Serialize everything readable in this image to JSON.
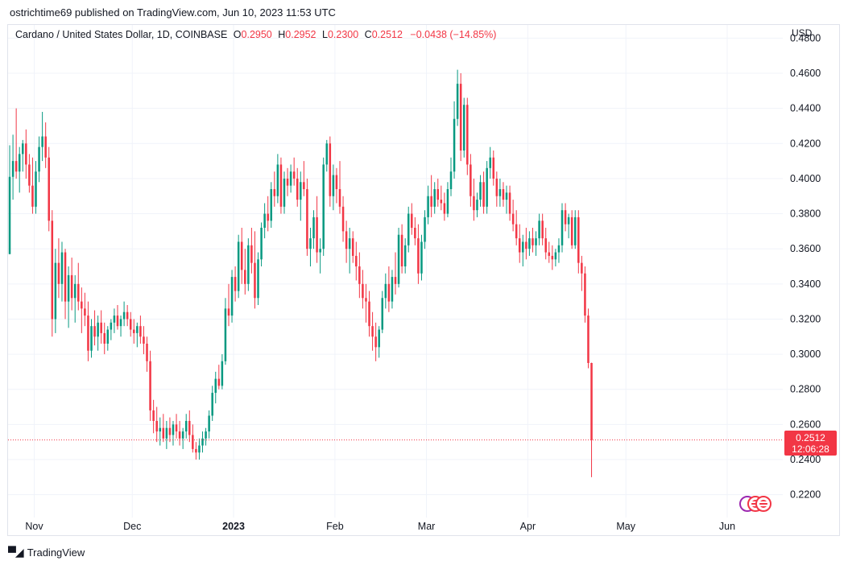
{
  "publish_line": "ostrichtime69 published on TradingView.com, Jun 10, 2023 11:53 UTC",
  "legend": {
    "symbol": "Cardano / United States Dollar, 1D, COINBASE",
    "o_label": "O",
    "o_value": "0.2950",
    "h_label": "H",
    "h_value": "0.2952",
    "l_label": "L",
    "l_value": "0.2300",
    "c_label": "C",
    "c_value": "0.2512",
    "change": "−0.0438 (−14.85%)"
  },
  "currency": "USD",
  "price_tag": {
    "price": "0.2512",
    "countdown": "12:06:28"
  },
  "branding": "TradingView",
  "colors": {
    "up": "#089981",
    "down": "#f23645",
    "grid": "#f0f3fa",
    "axis_text": "#131722"
  },
  "chart_data": {
    "type": "candlestick",
    "title": "Cardano / United States Dollar, 1D, COINBASE",
    "xlabel": "",
    "ylabel": "USD",
    "ylim": [
      0.207,
      0.4875
    ],
    "x_range": [
      "2022-10-24",
      "2023-06-18"
    ],
    "grid": true,
    "y_ticks": [
      "0.2200",
      "0.2400",
      "0.2600",
      "0.2800",
      "0.3000",
      "0.3200",
      "0.3400",
      "0.3600",
      "0.3800",
      "0.4000",
      "0.4200",
      "0.4400",
      "0.4600",
      "0.4800"
    ],
    "x_ticks": [
      {
        "label": "Nov",
        "date": "2022-11-01"
      },
      {
        "label": "Dec",
        "date": "2022-12-01"
      },
      {
        "label": "2023",
        "date": "2023-01-01",
        "bold": true
      },
      {
        "label": "Feb",
        "date": "2023-02-01"
      },
      {
        "label": "Mar",
        "date": "2023-03-01"
      },
      {
        "label": "Apr",
        "date": "2023-04-01"
      },
      {
        "label": "May",
        "date": "2023-05-01"
      },
      {
        "label": "Jun",
        "date": "2023-06-01"
      }
    ],
    "last_price": 0.2512,
    "start_date": "2022-10-24",
    "ohlc_daily": [
      [
        0.357,
        0.419,
        0.357,
        0.401
      ],
      [
        0.401,
        0.425,
        0.388,
        0.41
      ],
      [
        0.41,
        0.44,
        0.4,
        0.404
      ],
      [
        0.404,
        0.418,
        0.392,
        0.414
      ],
      [
        0.414,
        0.422,
        0.404,
        0.42
      ],
      [
        0.42,
        0.428,
        0.4,
        0.408
      ],
      [
        0.408,
        0.414,
        0.392,
        0.396
      ],
      [
        0.396,
        0.412,
        0.38,
        0.384
      ],
      [
        0.384,
        0.41,
        0.38,
        0.404
      ],
      [
        0.404,
        0.424,
        0.398,
        0.418
      ],
      [
        0.418,
        0.438,
        0.41,
        0.424
      ],
      [
        0.424,
        0.432,
        0.406,
        0.412
      ],
      [
        0.412,
        0.418,
        0.37,
        0.376
      ],
      [
        0.376,
        0.382,
        0.31,
        0.32
      ],
      [
        0.32,
        0.36,
        0.312,
        0.352
      ],
      [
        0.352,
        0.366,
        0.332,
        0.34
      ],
      [
        0.34,
        0.364,
        0.33,
        0.358
      ],
      [
        0.358,
        0.36,
        0.32,
        0.33
      ],
      [
        0.33,
        0.35,
        0.315,
        0.345
      ],
      [
        0.345,
        0.355,
        0.325,
        0.332
      ],
      [
        0.332,
        0.345,
        0.318,
        0.34
      ],
      [
        0.34,
        0.352,
        0.325,
        0.33
      ],
      [
        0.33,
        0.338,
        0.312,
        0.326
      ],
      [
        0.326,
        0.335,
        0.316,
        0.322
      ],
      [
        0.322,
        0.33,
        0.296,
        0.302
      ],
      [
        0.302,
        0.32,
        0.298,
        0.316
      ],
      [
        0.316,
        0.325,
        0.305,
        0.31
      ],
      [
        0.31,
        0.322,
        0.302,
        0.318
      ],
      [
        0.318,
        0.325,
        0.306,
        0.312
      ],
      [
        0.312,
        0.318,
        0.3,
        0.306
      ],
      [
        0.306,
        0.316,
        0.302,
        0.314
      ],
      [
        0.314,
        0.32,
        0.308,
        0.318
      ],
      [
        0.318,
        0.326,
        0.312,
        0.322
      ],
      [
        0.322,
        0.328,
        0.314,
        0.316
      ],
      [
        0.316,
        0.322,
        0.31,
        0.32
      ],
      [
        0.32,
        0.33,
        0.316,
        0.324
      ],
      [
        0.324,
        0.328,
        0.316,
        0.32
      ],
      [
        0.32,
        0.324,
        0.31,
        0.314
      ],
      [
        0.314,
        0.32,
        0.306,
        0.312
      ],
      [
        0.312,
        0.318,
        0.304,
        0.316
      ],
      [
        0.316,
        0.322,
        0.306,
        0.31
      ],
      [
        0.31,
        0.316,
        0.3,
        0.306
      ],
      [
        0.306,
        0.31,
        0.29,
        0.296
      ],
      [
        0.296,
        0.302,
        0.262,
        0.268
      ],
      [
        0.268,
        0.274,
        0.255,
        0.262
      ],
      [
        0.262,
        0.27,
        0.25,
        0.256
      ],
      [
        0.256,
        0.264,
        0.248,
        0.258
      ],
      [
        0.258,
        0.266,
        0.25,
        0.252
      ],
      [
        0.252,
        0.262,
        0.246,
        0.258
      ],
      [
        0.258,
        0.264,
        0.25,
        0.254
      ],
      [
        0.254,
        0.262,
        0.248,
        0.26
      ],
      [
        0.26,
        0.266,
        0.252,
        0.256
      ],
      [
        0.256,
        0.262,
        0.248,
        0.252
      ],
      [
        0.252,
        0.258,
        0.246,
        0.256
      ],
      [
        0.256,
        0.266,
        0.252,
        0.262
      ],
      [
        0.262,
        0.268,
        0.25,
        0.254
      ],
      [
        0.254,
        0.26,
        0.244,
        0.246
      ],
      [
        0.246,
        0.25,
        0.24,
        0.244
      ],
      [
        0.244,
        0.252,
        0.24,
        0.248
      ],
      [
        0.248,
        0.256,
        0.244,
        0.252
      ],
      [
        0.252,
        0.258,
        0.248,
        0.256
      ],
      [
        0.256,
        0.268,
        0.252,
        0.265
      ],
      [
        0.265,
        0.282,
        0.262,
        0.278
      ],
      [
        0.278,
        0.29,
        0.272,
        0.286
      ],
      [
        0.286,
        0.294,
        0.28,
        0.282
      ],
      [
        0.282,
        0.3,
        0.28,
        0.296
      ],
      [
        0.296,
        0.332,
        0.294,
        0.326
      ],
      [
        0.326,
        0.34,
        0.316,
        0.322
      ],
      [
        0.322,
        0.348,
        0.318,
        0.344
      ],
      [
        0.344,
        0.35,
        0.33,
        0.336
      ],
      [
        0.336,
        0.368,
        0.332,
        0.364
      ],
      [
        0.364,
        0.372,
        0.34,
        0.348
      ],
      [
        0.348,
        0.36,
        0.334,
        0.34
      ],
      [
        0.34,
        0.366,
        0.336,
        0.362
      ],
      [
        0.362,
        0.372,
        0.346,
        0.352
      ],
      [
        0.352,
        0.37,
        0.326,
        0.332
      ],
      [
        0.332,
        0.358,
        0.328,
        0.354
      ],
      [
        0.354,
        0.375,
        0.35,
        0.372
      ],
      [
        0.372,
        0.386,
        0.366,
        0.38
      ],
      [
        0.38,
        0.39,
        0.37,
        0.376
      ],
      [
        0.376,
        0.398,
        0.372,
        0.394
      ],
      [
        0.394,
        0.404,
        0.384,
        0.39
      ],
      [
        0.39,
        0.414,
        0.386,
        0.408
      ],
      [
        0.408,
        0.412,
        0.38,
        0.384
      ],
      [
        0.384,
        0.404,
        0.38,
        0.4
      ],
      [
        0.4,
        0.406,
        0.39,
        0.396
      ],
      [
        0.396,
        0.408,
        0.392,
        0.404
      ],
      [
        0.404,
        0.412,
        0.396,
        0.4
      ],
      [
        0.4,
        0.406,
        0.384,
        0.388
      ],
      [
        0.388,
        0.404,
        0.376,
        0.398
      ],
      [
        0.398,
        0.41,
        0.39,
        0.394
      ],
      [
        0.394,
        0.4,
        0.356,
        0.36
      ],
      [
        0.36,
        0.372,
        0.35,
        0.366
      ],
      [
        0.366,
        0.382,
        0.36,
        0.378
      ],
      [
        0.378,
        0.39,
        0.352,
        0.358
      ],
      [
        0.358,
        0.366,
        0.346,
        0.36
      ],
      [
        0.36,
        0.412,
        0.356,
        0.408
      ],
      [
        0.408,
        0.422,
        0.404,
        0.42
      ],
      [
        0.42,
        0.424,
        0.384,
        0.39
      ],
      [
        0.39,
        0.408,
        0.382,
        0.402
      ],
      [
        0.402,
        0.406,
        0.386,
        0.394
      ],
      [
        0.394,
        0.41,
        0.38,
        0.384
      ],
      [
        0.384,
        0.39,
        0.364,
        0.37
      ],
      [
        0.37,
        0.376,
        0.352,
        0.36
      ],
      [
        0.36,
        0.372,
        0.346,
        0.366
      ],
      [
        0.366,
        0.37,
        0.352,
        0.356
      ],
      [
        0.356,
        0.364,
        0.342,
        0.35
      ],
      [
        0.35,
        0.358,
        0.332,
        0.34
      ],
      [
        0.34,
        0.348,
        0.326,
        0.332
      ],
      [
        0.332,
        0.34,
        0.318,
        0.33
      ],
      [
        0.33,
        0.336,
        0.31,
        0.316
      ],
      [
        0.316,
        0.324,
        0.302,
        0.31
      ],
      [
        0.31,
        0.318,
        0.296,
        0.304
      ],
      [
        0.304,
        0.316,
        0.298,
        0.314
      ],
      [
        0.314,
        0.336,
        0.312,
        0.332
      ],
      [
        0.332,
        0.346,
        0.326,
        0.34
      ],
      [
        0.34,
        0.35,
        0.324,
        0.33
      ],
      [
        0.33,
        0.348,
        0.326,
        0.344
      ],
      [
        0.344,
        0.358,
        0.334,
        0.34
      ],
      [
        0.34,
        0.372,
        0.338,
        0.368
      ],
      [
        0.368,
        0.374,
        0.346,
        0.35
      ],
      [
        0.35,
        0.366,
        0.346,
        0.362
      ],
      [
        0.362,
        0.384,
        0.358,
        0.38
      ],
      [
        0.38,
        0.386,
        0.368,
        0.372
      ],
      [
        0.372,
        0.378,
        0.362,
        0.366
      ],
      [
        0.366,
        0.374,
        0.34,
        0.346
      ],
      [
        0.346,
        0.368,
        0.342,
        0.364
      ],
      [
        0.364,
        0.382,
        0.36,
        0.378
      ],
      [
        0.378,
        0.396,
        0.374,
        0.39
      ],
      [
        0.39,
        0.402,
        0.378,
        0.384
      ],
      [
        0.384,
        0.398,
        0.38,
        0.394
      ],
      [
        0.394,
        0.4,
        0.384,
        0.388
      ],
      [
        0.388,
        0.396,
        0.382,
        0.386
      ],
      [
        0.386,
        0.392,
        0.376,
        0.38
      ],
      [
        0.38,
        0.398,
        0.378,
        0.394
      ],
      [
        0.394,
        0.412,
        0.39,
        0.404
      ],
      [
        0.404,
        0.444,
        0.4,
        0.434
      ],
      [
        0.434,
        0.462,
        0.43,
        0.454
      ],
      [
        0.454,
        0.46,
        0.41,
        0.416
      ],
      [
        0.416,
        0.446,
        0.412,
        0.442
      ],
      [
        0.442,
        0.446,
        0.402,
        0.408
      ],
      [
        0.408,
        0.414,
        0.384,
        0.39
      ],
      [
        0.39,
        0.4,
        0.376,
        0.382
      ],
      [
        0.382,
        0.392,
        0.378,
        0.388
      ],
      [
        0.388,
        0.402,
        0.384,
        0.398
      ],
      [
        0.398,
        0.404,
        0.38,
        0.384
      ],
      [
        0.384,
        0.41,
        0.38,
        0.406
      ],
      [
        0.406,
        0.418,
        0.4,
        0.412
      ],
      [
        0.412,
        0.416,
        0.396,
        0.4
      ],
      [
        0.4,
        0.404,
        0.384,
        0.39
      ],
      [
        0.39,
        0.4,
        0.384,
        0.394
      ],
      [
        0.394,
        0.398,
        0.384,
        0.388
      ],
      [
        0.388,
        0.396,
        0.38,
        0.392
      ],
      [
        0.392,
        0.396,
        0.376,
        0.38
      ],
      [
        0.38,
        0.388,
        0.37,
        0.374
      ],
      [
        0.374,
        0.382,
        0.362,
        0.366
      ],
      [
        0.366,
        0.374,
        0.352,
        0.358
      ],
      [
        0.358,
        0.368,
        0.35,
        0.364
      ],
      [
        0.364,
        0.372,
        0.354,
        0.36
      ],
      [
        0.36,
        0.37,
        0.356,
        0.366
      ],
      [
        0.366,
        0.372,
        0.358,
        0.362
      ],
      [
        0.362,
        0.37,
        0.356,
        0.366
      ],
      [
        0.366,
        0.38,
        0.362,
        0.376
      ],
      [
        0.376,
        0.38,
        0.362,
        0.366
      ],
      [
        0.366,
        0.372,
        0.354,
        0.358
      ],
      [
        0.358,
        0.364,
        0.352,
        0.356
      ],
      [
        0.356,
        0.362,
        0.348,
        0.354
      ],
      [
        0.354,
        0.36,
        0.35,
        0.358
      ],
      [
        0.358,
        0.366,
        0.352,
        0.362
      ],
      [
        0.362,
        0.386,
        0.358,
        0.382
      ],
      [
        0.382,
        0.386,
        0.37,
        0.374
      ],
      [
        0.374,
        0.38,
        0.366,
        0.378
      ],
      [
        0.378,
        0.382,
        0.36,
        0.362
      ],
      [
        0.362,
        0.382,
        0.36,
        0.378
      ],
      [
        0.378,
        0.382,
        0.346,
        0.352
      ],
      [
        0.352,
        0.356,
        0.336,
        0.346
      ],
      [
        0.346,
        0.35,
        0.318,
        0.322
      ],
      [
        0.322,
        0.326,
        0.292,
        0.295
      ],
      [
        0.295,
        0.2952,
        0.23,
        0.2512
      ]
    ]
  }
}
